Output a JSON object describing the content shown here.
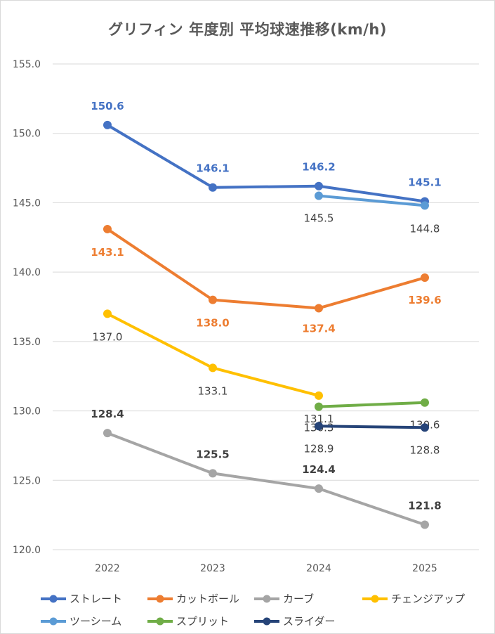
{
  "chart_data": {
    "type": "line",
    "title": "グリフィン 年度別 平均球速推移(km/h)",
    "categories": [
      "2022",
      "2023",
      "2024",
      "2025"
    ],
    "ylim": [
      120,
      155
    ],
    "yticks": [
      "120.0",
      "125.0",
      "130.0",
      "135.0",
      "140.0",
      "145.0",
      "150.0",
      "155.0"
    ],
    "grid": true,
    "legend_position": "bottom",
    "series": [
      {
        "name": "ストレート",
        "color": "#4472c4",
        "values": [
          150.6,
          146.1,
          146.2,
          145.1
        ],
        "labels": [
          "150.6",
          "146.1",
          "146.2",
          "145.1"
        ],
        "label_color": "#4472c4",
        "label_bold": true
      },
      {
        "name": "カットボール",
        "color": "#ed7d31",
        "values": [
          143.1,
          138.0,
          137.4,
          139.6
        ],
        "labels": [
          "143.1",
          "138.0",
          "137.4",
          "139.6"
        ],
        "label_color": "#ed7d31",
        "label_bold": true
      },
      {
        "name": "カーブ",
        "color": "#a5a5a5",
        "values": [
          128.4,
          125.5,
          124.4,
          121.8
        ],
        "labels": [
          "128.4",
          "125.5",
          "124.4",
          "121.8"
        ],
        "label_color": "#404040",
        "label_bold": true
      },
      {
        "name": "チェンジアップ",
        "color": "#ffc000",
        "values": [
          137.0,
          133.1,
          131.1,
          null
        ],
        "labels": [
          "137.0",
          "133.1",
          "131.1",
          ""
        ],
        "label_color": "#404040",
        "label_bold": false
      },
      {
        "name": "ツーシーム",
        "color": "#5b9bd5",
        "values": [
          null,
          null,
          145.5,
          144.8
        ],
        "labels": [
          "",
          "",
          "145.5",
          "144.8"
        ],
        "label_color": "#404040",
        "label_bold": false
      },
      {
        "name": "スプリット",
        "color": "#70ad47",
        "values": [
          null,
          null,
          130.3,
          130.6
        ],
        "labels": [
          "",
          "",
          "130.3",
          "130.6"
        ],
        "label_color": "#404040",
        "label_bold": false
      },
      {
        "name": "スライダー",
        "color": "#264478",
        "values": [
          null,
          null,
          128.9,
          128.8
        ],
        "labels": [
          "",
          "",
          "128.9",
          "128.8"
        ],
        "label_color": "#404040",
        "label_bold": false
      }
    ]
  }
}
